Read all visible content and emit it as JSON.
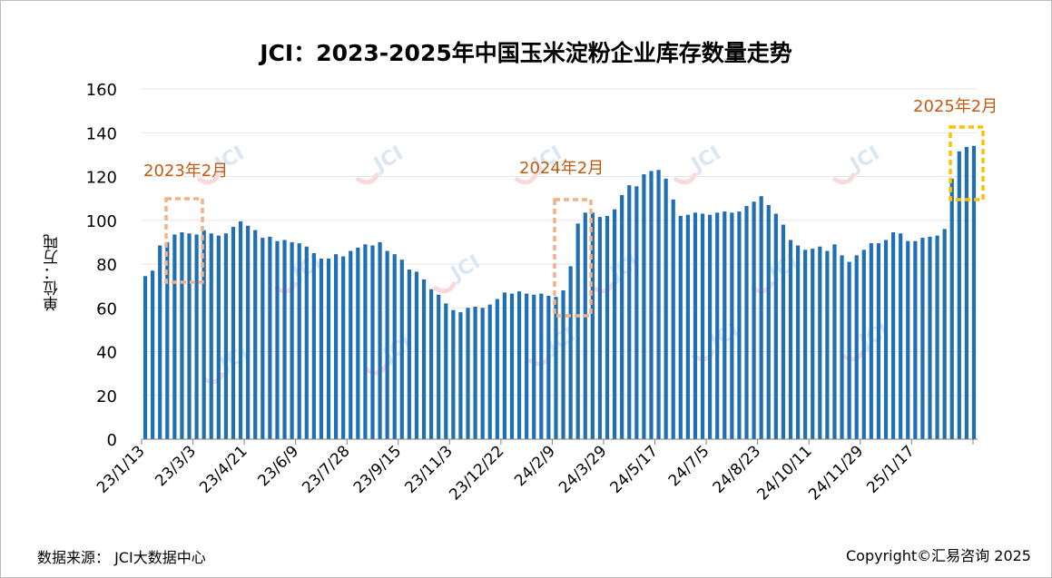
{
  "chart_data": {
    "type": "bar",
    "title": "JCI：2023-2025年中国玉米淀粉企业库存数量走势",
    "ylabel": "单位：万吨",
    "ylim": [
      0,
      160
    ],
    "yticks": [
      0,
      20,
      40,
      60,
      80,
      100,
      120,
      140,
      160
    ],
    "xtick_labels": [
      "23/1/13",
      "23/3/3",
      "23/4/21",
      "23/6/9",
      "23/7/28",
      "23/9/15",
      "23/11/3",
      "23/12/22",
      "24/2/9",
      "24/3/29",
      "24/5/17",
      "24/7/5",
      "24/8/23",
      "24/10/11",
      "24/11/29",
      "25/1/17"
    ],
    "grid": "horizontal",
    "legend": "none",
    "bar_color": "#1f6fb4",
    "values": [
      74.5,
      77,
      88.5,
      90,
      93.5,
      94.5,
      94,
      93.5,
      95.5,
      94,
      93,
      94,
      97,
      99.5,
      97.5,
      95.5,
      92,
      92.5,
      90.5,
      91,
      90,
      89.5,
      88,
      85,
      82.5,
      82.5,
      84.5,
      83.5,
      86,
      87.5,
      89,
      88.5,
      90,
      86,
      84.5,
      82,
      77.5,
      76.5,
      73,
      68.5,
      66,
      62,
      59,
      58,
      60,
      60.5,
      60,
      61.5,
      64,
      67,
      66.5,
      67.5,
      66.5,
      66,
      66.5,
      65.5,
      65,
      68,
      79,
      98.5,
      103.5,
      103.5,
      101.5,
      102,
      105,
      111.5,
      116,
      115.5,
      121,
      122.5,
      123,
      119,
      109.5,
      102,
      102.5,
      103.5,
      103,
      102.5,
      103.5,
      104,
      103.5,
      104,
      106.5,
      108.5,
      111,
      107,
      103,
      98,
      91,
      88.5,
      86.5,
      87,
      88,
      86,
      89,
      84,
      81,
      84,
      86.5,
      89.5,
      89.5,
      91,
      94.5,
      94,
      90.5,
      90.5,
      92,
      92.5,
      93,
      96,
      119,
      131.5,
      133.5,
      134
    ]
  },
  "annotations": [
    {
      "label": "2023年2月",
      "color": "#c55a11",
      "box_color": "#f4b183"
    },
    {
      "label": "2024年2月",
      "color": "#c55a11",
      "box_color": "#f4b183"
    },
    {
      "label": "2025年2月",
      "color": "#c55a11",
      "box_color": "#ffc000"
    }
  ],
  "watermark": "JCI",
  "footer": {
    "source": "数据来源：  JCI大数据中心",
    "copyright": "Copyright©汇易咨询 2025"
  }
}
